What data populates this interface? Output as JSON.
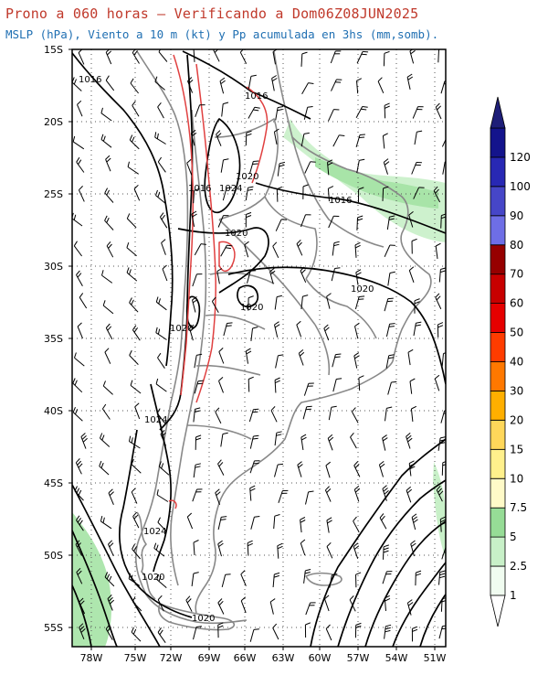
{
  "title_line1": "Prono a 060 horas — Verificando a Dom06Z08JUN2025",
  "title_line2": "MSLP (hPa), Viento a 10 m (kt) y Pp acumulada en 3hs (mm,somb).",
  "lat_labels": [
    "15S",
    "20S",
    "25S",
    "30S",
    "35S",
    "40S",
    "45S",
    "50S",
    "55S"
  ],
  "lon_labels": [
    "78W",
    "75W",
    "72W",
    "69W",
    "66W",
    "63W",
    "60W",
    "57W",
    "54W",
    "51W"
  ],
  "isobar_labels": [
    "1016",
    "1016",
    "1016",
    "1016",
    "1020",
    "1024",
    "1020",
    "1020",
    "1020",
    "1020",
    "1024",
    "1024",
    "1020",
    "1020"
  ],
  "colorbar": {
    "labels": [
      "1",
      "2.5",
      "5",
      "7.5",
      "10",
      "15",
      "20",
      "30",
      "40",
      "50",
      "60",
      "70",
      "80",
      "90",
      "100",
      "120"
    ],
    "colors": [
      "#f0fcf0",
      "#c8f0c8",
      "#96dc96",
      "#fffac8",
      "#fff08c",
      "#ffd75a",
      "#ffaf00",
      "#ff7800",
      "#ff3c00",
      "#e60000",
      "#c80000",
      "#960000",
      "#6e6ee6",
      "#4646c8",
      "#2828b4",
      "#14148c",
      "#1e1e78"
    ]
  },
  "colors": {
    "coast": "#888888",
    "isobar": "#000000",
    "terrain": "#e04040",
    "barb": "#000000"
  }
}
